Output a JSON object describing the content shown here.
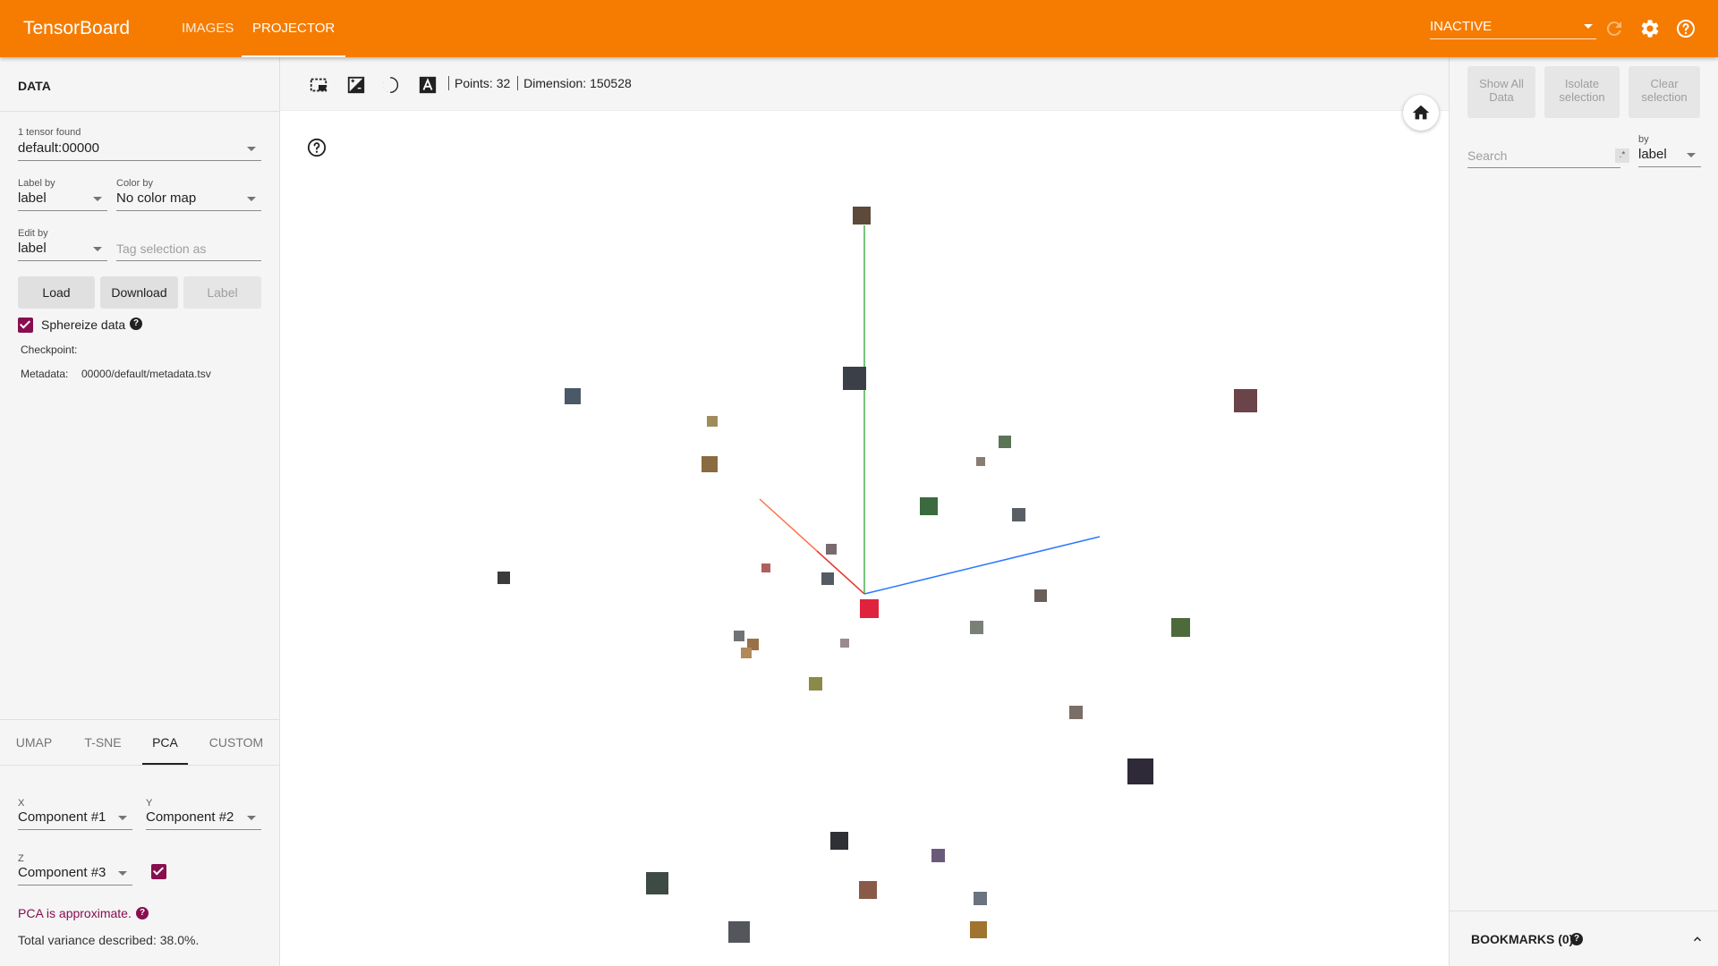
{
  "header": {
    "brand": "TensorBoard",
    "tabs": [
      {
        "label": "IMAGES",
        "active": false
      },
      {
        "label": "PROJECTOR",
        "active": true
      }
    ],
    "run_select": "INACTIVE",
    "icons": [
      "refresh-icon",
      "settings-icon",
      "help-icon"
    ],
    "colors": {
      "header_bg": "#f57c00",
      "accent": "#880e4f"
    }
  },
  "left": {
    "title": "DATA",
    "tensor_found": "1 tensor found",
    "tensor_value": "default:00000",
    "label_by": {
      "label": "Label by",
      "value": "label"
    },
    "color_by": {
      "label": "Color by",
      "value": "No color map"
    },
    "edit_by": {
      "label": "Edit by",
      "value": "label"
    },
    "tag_placeholder": "Tag selection as",
    "buttons": {
      "load": "Load",
      "download": "Download",
      "label": "Label"
    },
    "sphereize": {
      "label": "Sphereize data",
      "checked": true
    },
    "checkpoint_label": "Checkpoint:",
    "metadata_label": "Metadata:",
    "metadata_value": "00000/default/metadata.tsv",
    "proj_tabs": [
      {
        "label": "UMAP",
        "active": false
      },
      {
        "label": "T-SNE",
        "active": false
      },
      {
        "label": "PCA",
        "active": true
      },
      {
        "label": "CUSTOM",
        "active": false
      }
    ],
    "pca": {
      "x_label": "X",
      "x_value": "Component #1",
      "y_label": "Y",
      "y_value": "Component #2",
      "z_label": "Z",
      "z_value": "Component #3",
      "z_enabled": true,
      "approx_text": "PCA is approximate.",
      "variance_text": "Total variance described: 38.0%."
    }
  },
  "main": {
    "stats": {
      "points": "Points: 32",
      "dimension": "Dimension: 150528"
    },
    "toolbar_icons": [
      "selection-icon",
      "night-mode-icon",
      "theme-icon",
      "labels-icon"
    ]
  },
  "right": {
    "buttons": {
      "show_all": [
        "Show All",
        "Data"
      ],
      "isolate": [
        "Isolate",
        "selection"
      ],
      "clear": [
        "Clear",
        "selection"
      ]
    },
    "search_placeholder": "Search",
    "regex_symbol": ".*",
    "by_label": "by",
    "by_value": "label",
    "bookmarks": "BOOKMARKS (0)"
  }
}
